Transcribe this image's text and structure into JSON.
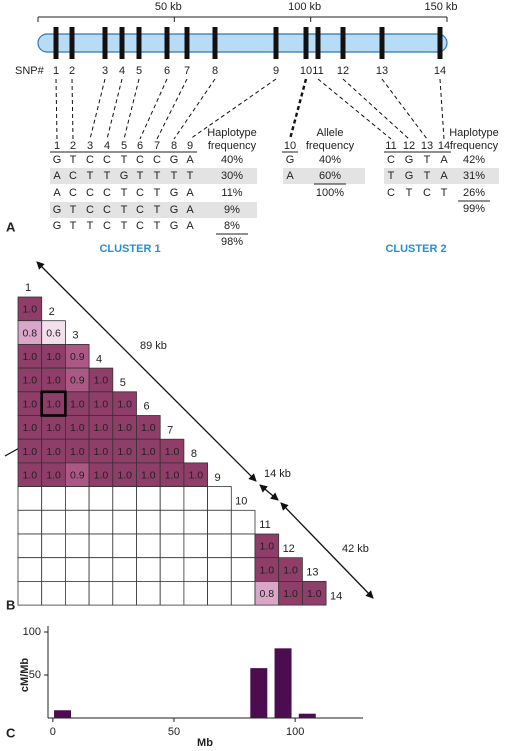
{
  "panel_a": {
    "label": "A",
    "scale": {
      "lim": [
        0,
        150
      ],
      "ticks": [
        {
          "value": 50,
          "label": "50 kb"
        },
        {
          "value": 100,
          "label": "100 kb"
        },
        {
          "value": 150,
          "label": "150 kb"
        }
      ]
    },
    "snp_label": "SNP#",
    "snps": [
      "1",
      "2",
      "3",
      "4",
      "5",
      "6",
      "7",
      "8",
      "9",
      "10",
      "11",
      "12",
      "13",
      "14"
    ],
    "cluster1": {
      "name": "CLUSTER 1",
      "columns": [
        "1",
        "2",
        "3",
        "4",
        "5",
        "6",
        "7",
        "8",
        "9"
      ],
      "frequency_header": [
        "Haplotype",
        "frequency"
      ],
      "rows": [
        [
          "G",
          "T",
          "C",
          "C",
          "T",
          "C",
          "C",
          "G",
          "A"
        ],
        [
          "A",
          "C",
          "T",
          "T",
          "G",
          "T",
          "T",
          "T",
          "T"
        ],
        [
          "A",
          "C",
          "C",
          "C",
          "T",
          "C",
          "T",
          "G",
          "A"
        ],
        [
          "G",
          "T",
          "C",
          "C",
          "T",
          "C",
          "T",
          "G",
          "A"
        ],
        [
          "G",
          "T",
          "T",
          "C",
          "T",
          "C",
          "T",
          "G",
          "A"
        ]
      ],
      "frequencies": [
        "40%",
        "30%",
        "11%",
        "9%",
        "8%"
      ],
      "total": "98%"
    },
    "allele": {
      "column": "10",
      "frequency_header": [
        "Allele",
        "frequency"
      ],
      "rows": [
        "G",
        "A"
      ],
      "frequencies": [
        "40%",
        "60%"
      ],
      "total": "100%"
    },
    "cluster2": {
      "name": "CLUSTER 2",
      "columns": [
        "11",
        "12",
        "13",
        "14"
      ],
      "frequency_header": [
        "Haplotype",
        "frequency"
      ],
      "rows": [
        [
          "C",
          "G",
          "T",
          "A"
        ],
        [
          "T",
          "G",
          "T",
          "A"
        ],
        [
          "C",
          "T",
          "C",
          "T"
        ]
      ],
      "frequencies": [
        "42%",
        "31%",
        "26%"
      ],
      "total": "99%"
    }
  },
  "panel_b": {
    "label": "B",
    "snps": [
      "1",
      "2",
      "3",
      "4",
      "5",
      "6",
      "7",
      "8",
      "9",
      "10",
      "11",
      "12",
      "13",
      "14"
    ],
    "rows": [
      [
        "1.0"
      ],
      [
        "0.8",
        "0.6"
      ],
      [
        "1.0",
        "1.0",
        "0.9"
      ],
      [
        "1.0",
        "1.0",
        "0.9",
        "1.0"
      ],
      [
        "1.0",
        "1.0",
        "1.0",
        "1.0",
        "1.0"
      ],
      [
        "1.0",
        "1.0",
        "1.0",
        "1.0",
        "1.0",
        "1.0"
      ],
      [
        "1.0",
        "1.0",
        "1.0",
        "1.0",
        "1.0",
        "1.0",
        "1.0"
      ],
      [
        "1.0",
        "1.0",
        "0.9",
        "1.0",
        "1.0",
        "1.0",
        "1.0",
        "1.0"
      ],
      [
        null,
        null,
        null,
        null,
        null,
        null,
        null,
        null,
        null
      ],
      [
        null,
        null,
        null,
        null,
        null,
        null,
        null,
        null,
        null,
        null
      ],
      [
        null,
        null,
        null,
        null,
        null,
        null,
        null,
        null,
        null,
        null,
        "1.0"
      ],
      [
        null,
        null,
        null,
        null,
        null,
        null,
        null,
        null,
        null,
        null,
        "1.0",
        "1.0"
      ],
      [
        null,
        null,
        null,
        null,
        null,
        null,
        null,
        null,
        null,
        null,
        "0.8",
        "1.0",
        "1.0"
      ]
    ],
    "colors": {
      "1.0": "#8f3d69",
      "0.9": "#ac5885",
      "0.8": "#d9a6c7",
      "0.6": "#f3dfeb"
    },
    "distances": [
      "89 kb",
      "14 kb",
      "42 kb"
    ]
  },
  "chart_data": {
    "type": "bar",
    "label": "C",
    "y_label": "cM/Mb",
    "x_label": "Mb",
    "x": [
      4,
      85,
      95,
      105
    ],
    "values": [
      9,
      58,
      81,
      5
    ],
    "color": "#4b0c50",
    "xlim": [
      -2,
      128
    ],
    "ylim": [
      0,
      100
    ],
    "xticks": [
      0,
      50,
      100
    ],
    "yticks": [
      50,
      100
    ]
  }
}
